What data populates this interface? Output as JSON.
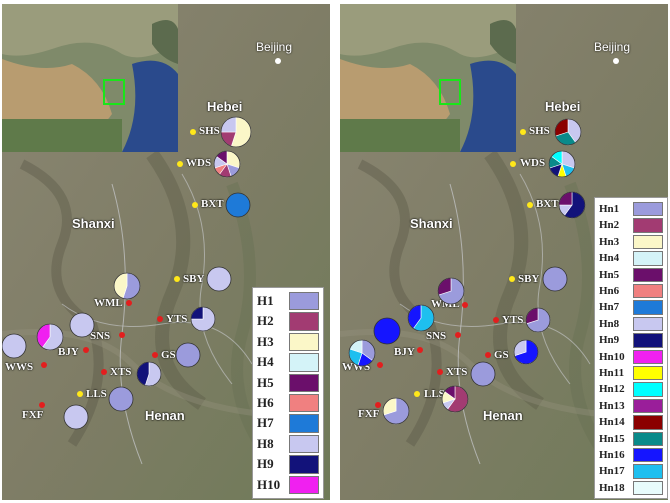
{
  "map": {
    "labels": {
      "beijing": "Beijing",
      "hebei": "Hebei",
      "shanxi": "Shanxi",
      "henan": "Henan"
    },
    "sites_shared": [
      "SHS",
      "WDS",
      "BXT",
      "SBY",
      "WML",
      "YTS",
      "SNS",
      "BJY",
      "WWS",
      "GS",
      "XTS",
      "LLS",
      "FXF"
    ]
  },
  "left_panel": {
    "legend": [
      {
        "label": "H1",
        "color": "#9b9bdc"
      },
      {
        "label": "H2",
        "color": "#a23b72"
      },
      {
        "label": "H3",
        "color": "#fbf7c8"
      },
      {
        "label": "H4",
        "color": "#d4f3f8"
      },
      {
        "label": "H5",
        "color": "#6b0f6b"
      },
      {
        "label": "H6",
        "color": "#f08080"
      },
      {
        "label": "H7",
        "color": "#1e7ad8"
      },
      {
        "label": "H8",
        "color": "#c8c8f0"
      },
      {
        "label": "H9",
        "color": "#12127a"
      },
      {
        "label": "H10",
        "color": "#f020f0"
      }
    ],
    "sites": [
      {
        "name": "SHS",
        "dot_color": "yellow",
        "pie": [
          0.55,
          0.2,
          0.25
        ],
        "pie_colors": [
          "#fbf7c8",
          "#a23b72",
          "#c8c8f0"
        ]
      },
      {
        "name": "WDS",
        "dot_color": "yellow",
        "pie": [
          0.3,
          0.15,
          0.15,
          0.1,
          0.15,
          0.15
        ],
        "pie_colors": [
          "#fbf7c8",
          "#9b9bdc",
          "#a23b72",
          "#f08080",
          "#c8c8f0",
          "#6b0f6b"
        ]
      },
      {
        "name": "BXT",
        "dot_color": "yellow",
        "pie": [
          1.0
        ],
        "pie_colors": [
          "#1e7ad8"
        ]
      },
      {
        "name": "SBY",
        "dot_color": "yellow",
        "pie": [
          1.0
        ],
        "pie_colors": [
          "#c8c8f0"
        ]
      },
      {
        "name": "WML",
        "dot_color": "red",
        "pie": [
          0.55,
          0.45
        ],
        "pie_colors": [
          "#9b9bdc",
          "#fbf7c8"
        ]
      },
      {
        "name": "YTS",
        "dot_color": "red",
        "pie": [
          0.75,
          0.25
        ],
        "pie_colors": [
          "#c8c8f0",
          "#12127a"
        ]
      },
      {
        "name": "SNS",
        "dot_color": "red",
        "pie": [
          1.0
        ],
        "pie_colors": [
          "#c8c8f0"
        ]
      },
      {
        "name": "BJY",
        "dot_color": "red",
        "pie": [
          0.6,
          0.4
        ],
        "pie_colors": [
          "#c8c8f0",
          "#f020f0"
        ]
      },
      {
        "name": "WWS",
        "dot_color": "red",
        "pie": [
          1.0
        ],
        "pie_colors": [
          "#c8c8f0"
        ]
      },
      {
        "name": "GS",
        "dot_color": "red",
        "pie": [
          1.0
        ],
        "pie_colors": [
          "#9b9bdc"
        ]
      },
      {
        "name": "XTS",
        "dot_color": "red",
        "pie": [
          0.55,
          0.45
        ],
        "pie_colors": [
          "#c8c8f0",
          "#12127a"
        ]
      },
      {
        "name": "LLS",
        "dot_color": "yellow",
        "pie": [
          1.0
        ],
        "pie_colors": [
          "#9b9bdc"
        ]
      },
      {
        "name": "FXF",
        "dot_color": "red",
        "pie": [
          1.0
        ],
        "pie_colors": [
          "#c8c8f0"
        ]
      }
    ]
  },
  "right_panel": {
    "legend": [
      {
        "label": "Hn1",
        "color": "#9b9bdc"
      },
      {
        "label": "Hn2",
        "color": "#a23b72"
      },
      {
        "label": "Hn3",
        "color": "#fbf7c8"
      },
      {
        "label": "Hn4",
        "color": "#d4f3f8"
      },
      {
        "label": "Hn5",
        "color": "#6b0f6b"
      },
      {
        "label": "Hn6",
        "color": "#f08080"
      },
      {
        "label": "Hn7",
        "color": "#1e7ad8"
      },
      {
        "label": "Hn8",
        "color": "#c8c8f0"
      },
      {
        "label": "Hn9",
        "color": "#12127a"
      },
      {
        "label": "Hn10",
        "color": "#f020f0"
      },
      {
        "label": "Hn11",
        "color": "#ffff00"
      },
      {
        "label": "Hn12",
        "color": "#00ffff"
      },
      {
        "label": "Hn13",
        "color": "#9a1e9a"
      },
      {
        "label": "Hn14",
        "color": "#8b0000"
      },
      {
        "label": "Hn15",
        "color": "#0a8a8a"
      },
      {
        "label": "Hn16",
        "color": "#1515ff"
      },
      {
        "label": "Hn17",
        "color": "#1ebfef"
      },
      {
        "label": "Hn18",
        "color": "#e8fcfc"
      }
    ],
    "sites": [
      {
        "name": "SHS",
        "dot_color": "yellow",
        "pie": [
          0.4,
          0.3,
          0.3
        ],
        "pie_colors": [
          "#c8c8f0",
          "#0a8a8a",
          "#8b0000"
        ]
      },
      {
        "name": "WDS",
        "dot_color": "yellow",
        "pie": [
          0.3,
          0.15,
          0.1,
          0.15,
          0.15,
          0.15
        ],
        "pie_colors": [
          "#c8c8f0",
          "#1ebfef",
          "#ffff00",
          "#12127a",
          "#0a8a8a",
          "#00ffff"
        ]
      },
      {
        "name": "BXT",
        "dot_color": "yellow",
        "pie": [
          0.6,
          0.15,
          0.25
        ],
        "pie_colors": [
          "#12127a",
          "#c8c8f0",
          "#6b0f6b"
        ]
      },
      {
        "name": "SBY",
        "dot_color": "yellow",
        "pie": [
          1.0
        ],
        "pie_colors": [
          "#9b9bdc"
        ]
      },
      {
        "name": "WML",
        "dot_color": "red",
        "pie": [
          0.7,
          0.3
        ],
        "pie_colors": [
          "#9b9bdc",
          "#6b0f6b"
        ]
      },
      {
        "name": "YTS",
        "dot_color": "red",
        "pie": [
          0.7,
          0.3
        ],
        "pie_colors": [
          "#9b9bdc",
          "#6b0f6b"
        ]
      },
      {
        "name": "SNS",
        "dot_color": "red",
        "pie": [
          0.6,
          0.4
        ],
        "pie_colors": [
          "#1ebfef",
          "#1515ff"
        ]
      },
      {
        "name": "BJY",
        "dot_color": "red",
        "pie": [
          1.0
        ],
        "pie_colors": [
          "#1515ff"
        ]
      },
      {
        "name": "WWS",
        "dot_color": "red",
        "pie": [
          0.35,
          0.2,
          0.25,
          0.2
        ],
        "pie_colors": [
          "#9b9bdc",
          "#1515ff",
          "#1ebfef",
          "#d4f3f8"
        ]
      },
      {
        "name": "GS",
        "dot_color": "red",
        "pie": [
          0.7,
          0.3
        ],
        "pie_colors": [
          "#1515ff",
          "#c8c8f0"
        ]
      },
      {
        "name": "XTS",
        "dot_color": "red",
        "pie": [
          1.0
        ],
        "pie_colors": [
          "#9b9bdc"
        ]
      },
      {
        "name": "LLS",
        "dot_color": "yellow",
        "pie": [
          0.6,
          0.1,
          0.15,
          0.15
        ],
        "pie_colors": [
          "#a23b72",
          "#c8c8f0",
          "#fbf7c8",
          "#6b0f6b"
        ]
      },
      {
        "name": "FXF",
        "dot_color": "red",
        "pie": [
          0.7,
          0.3
        ],
        "pie_colors": [
          "#9b9bdc",
          "#fbf7c8"
        ]
      }
    ]
  }
}
